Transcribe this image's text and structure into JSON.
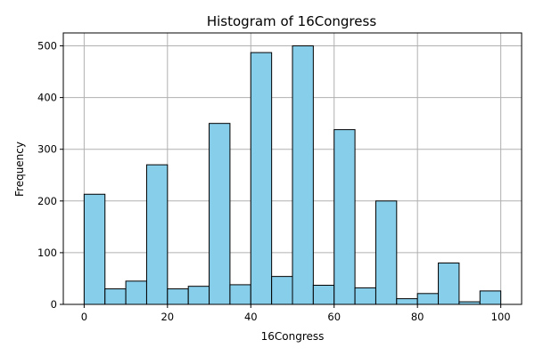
{
  "chart_data": {
    "type": "bar",
    "title": "Histogram of 16Congress",
    "xlabel": "16Congress",
    "ylabel": "Frequency",
    "xlim": [
      -5,
      105
    ],
    "ylim": [
      0,
      525
    ],
    "xticks": [
      0,
      20,
      40,
      60,
      80,
      100
    ],
    "yticks": [
      0,
      100,
      200,
      300,
      400,
      500
    ],
    "grid": true,
    "bar_color": "#87CEEB",
    "edge_color": "#000000",
    "bins": [
      {
        "x0": 0,
        "x1": 5,
        "value": 213
      },
      {
        "x0": 5,
        "x1": 10,
        "value": 30
      },
      {
        "x0": 10,
        "x1": 15,
        "value": 45
      },
      {
        "x0": 15,
        "x1": 20,
        "value": 270
      },
      {
        "x0": 20,
        "x1": 25,
        "value": 30
      },
      {
        "x0": 25,
        "x1": 30,
        "value": 35
      },
      {
        "x0": 30,
        "x1": 35,
        "value": 350
      },
      {
        "x0": 35,
        "x1": 40,
        "value": 38
      },
      {
        "x0": 40,
        "x1": 45,
        "value": 487
      },
      {
        "x0": 45,
        "x1": 50,
        "value": 54
      },
      {
        "x0": 50,
        "x1": 55,
        "value": 500
      },
      {
        "x0": 55,
        "x1": 60,
        "value": 37
      },
      {
        "x0": 60,
        "x1": 65,
        "value": 338
      },
      {
        "x0": 65,
        "x1": 70,
        "value": 32
      },
      {
        "x0": 70,
        "x1": 75,
        "value": 200
      },
      {
        "x0": 75,
        "x1": 80,
        "value": 11
      },
      {
        "x0": 80,
        "x1": 85,
        "value": 21
      },
      {
        "x0": 85,
        "x1": 90,
        "value": 80
      },
      {
        "x0": 90,
        "x1": 95,
        "value": 5
      },
      {
        "x0": 95,
        "x1": 100,
        "value": 26
      }
    ]
  }
}
